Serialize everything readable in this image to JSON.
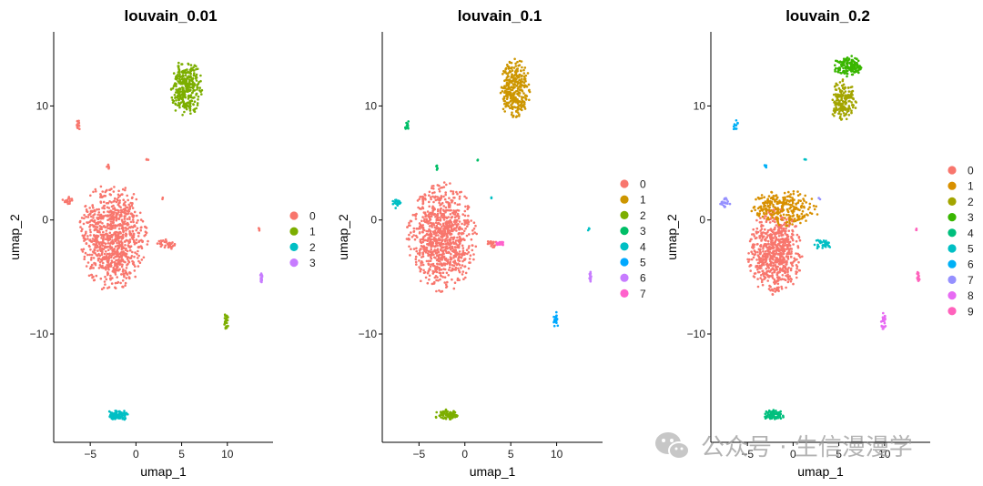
{
  "chart_data": [
    {
      "type": "scatter",
      "title": "louvain_0.01",
      "xlabel": "umap_1",
      "ylabel": "umap_2",
      "xlim": [
        -9,
        15
      ],
      "ylim": [
        -19.5,
        16.5
      ],
      "xticks": [
        -5,
        0,
        5,
        10
      ],
      "yticks": [
        -10,
        0,
        10
      ],
      "legend_position": "right",
      "legend": [
        "0",
        "1",
        "2",
        "3"
      ],
      "colors": [
        "#F8766D",
        "#7CAE00",
        "#00BFC4",
        "#C77CFF"
      ],
      "groups": [
        {
          "cx": -2.5,
          "cy": -1.5,
          "rx": 3.8,
          "ry": 4.8,
          "n": 900,
          "label": 0
        },
        {
          "cx": -7.5,
          "cy": 1.7,
          "rx": 0.6,
          "ry": 0.4,
          "n": 18,
          "label": 0
        },
        {
          "cx": -6.3,
          "cy": 8.3,
          "rx": 0.3,
          "ry": 0.5,
          "n": 12,
          "label": 0
        },
        {
          "cx": -3.0,
          "cy": 4.6,
          "rx": 0.2,
          "ry": 0.3,
          "n": 6,
          "label": 0
        },
        {
          "cx": 1.3,
          "cy": 5.3,
          "rx": 0.15,
          "ry": 0.15,
          "n": 3,
          "label": 0
        },
        {
          "cx": 2.9,
          "cy": 1.9,
          "rx": 0.1,
          "ry": 0.15,
          "n": 2,
          "label": 0
        },
        {
          "cx": 3.3,
          "cy": -2.1,
          "rx": 1.0,
          "ry": 0.5,
          "n": 35,
          "label": 0
        },
        {
          "cx": 13.5,
          "cy": -0.8,
          "rx": 0.1,
          "ry": 0.2,
          "n": 3,
          "label": 0
        },
        {
          "cx": 5.5,
          "cy": 11.5,
          "rx": 1.8,
          "ry": 2.6,
          "n": 320,
          "label": 1
        },
        {
          "cx": 9.9,
          "cy": -8.8,
          "rx": 0.3,
          "ry": 0.8,
          "n": 25,
          "label": 1
        },
        {
          "cx": -2.0,
          "cy": -17.1,
          "rx": 1.3,
          "ry": 0.5,
          "n": 80,
          "label": 2
        },
        {
          "cx": 13.7,
          "cy": -5.0,
          "rx": 0.15,
          "ry": 0.6,
          "n": 15,
          "label": 3
        }
      ]
    },
    {
      "type": "scatter",
      "title": "louvain_0.1",
      "xlabel": "umap_1",
      "ylabel": "umap_2",
      "xlim": [
        -9,
        15
      ],
      "ylim": [
        -19.5,
        16.5
      ],
      "xticks": [
        -5,
        0,
        5,
        10
      ],
      "yticks": [
        -10,
        0,
        10
      ],
      "legend_position": "right",
      "legend": [
        "0",
        "1",
        "2",
        "3",
        "4",
        "5",
        "6",
        "7"
      ],
      "colors": [
        "#F8766D",
        "#CD9600",
        "#7CAE00",
        "#00BE67",
        "#00BFC4",
        "#00A9FF",
        "#C77CFF",
        "#FF61CC"
      ],
      "groups": [
        {
          "cx": -2.5,
          "cy": -1.5,
          "rx": 3.8,
          "ry": 4.8,
          "n": 900,
          "label": 0
        },
        {
          "cx": 3.0,
          "cy": -2.1,
          "rx": 0.7,
          "ry": 0.4,
          "n": 20,
          "label": 0
        },
        {
          "cx": 5.5,
          "cy": 11.5,
          "rx": 1.8,
          "ry": 2.6,
          "n": 320,
          "label": 1
        },
        {
          "cx": -2.0,
          "cy": -17.1,
          "rx": 1.3,
          "ry": 0.5,
          "n": 80,
          "label": 2
        },
        {
          "cx": -6.3,
          "cy": 8.3,
          "rx": 0.3,
          "ry": 0.5,
          "n": 12,
          "label": 3
        },
        {
          "cx": -3.0,
          "cy": 4.6,
          "rx": 0.2,
          "ry": 0.3,
          "n": 6,
          "label": 3
        },
        {
          "cx": 1.3,
          "cy": 5.3,
          "rx": 0.15,
          "ry": 0.15,
          "n": 3,
          "label": 3
        },
        {
          "cx": -7.5,
          "cy": 1.5,
          "rx": 0.6,
          "ry": 0.5,
          "n": 20,
          "label": 4
        },
        {
          "cx": 2.9,
          "cy": 1.9,
          "rx": 0.1,
          "ry": 0.15,
          "n": 2,
          "label": 4
        },
        {
          "cx": 13.5,
          "cy": -0.8,
          "rx": 0.1,
          "ry": 0.2,
          "n": 3,
          "label": 4
        },
        {
          "cx": 9.9,
          "cy": -8.8,
          "rx": 0.3,
          "ry": 0.8,
          "n": 25,
          "label": 5
        },
        {
          "cx": 13.7,
          "cy": -5.0,
          "rx": 0.15,
          "ry": 0.6,
          "n": 15,
          "label": 6
        },
        {
          "cx": 3.9,
          "cy": -2.0,
          "rx": 0.5,
          "ry": 0.3,
          "n": 18,
          "label": 7
        }
      ]
    },
    {
      "type": "scatter",
      "title": "louvain_0.2",
      "xlabel": "umap_1",
      "ylabel": "umap_2",
      "xlim": [
        -9,
        15
      ],
      "ylim": [
        -19.5,
        16.5
      ],
      "xticks": [
        -5,
        0,
        5,
        10
      ],
      "yticks": [
        -10,
        0,
        10
      ],
      "legend_position": "right",
      "legend": [
        "0",
        "1",
        "2",
        "3",
        "4",
        "5",
        "6",
        "7",
        "8",
        "9"
      ],
      "colors": [
        "#F8766D",
        "#D89000",
        "#A3A500",
        "#39B600",
        "#00BF7D",
        "#00BFC4",
        "#00B0F6",
        "#9590FF",
        "#E76BF3",
        "#FF62BC"
      ],
      "groups": [
        {
          "cx": -2.0,
          "cy": -2.8,
          "rx": 3.0,
          "ry": 3.8,
          "n": 700,
          "label": 0
        },
        {
          "cx": -1.0,
          "cy": 1.0,
          "rx": 4.0,
          "ry": 1.6,
          "n": 260,
          "label": 1
        },
        {
          "cx": 5.5,
          "cy": 10.5,
          "rx": 1.6,
          "ry": 1.8,
          "n": 180,
          "label": 2
        },
        {
          "cx": 6.0,
          "cy": 13.5,
          "rx": 1.6,
          "ry": 1.0,
          "n": 140,
          "label": 3
        },
        {
          "cx": -2.0,
          "cy": -17.1,
          "rx": 1.3,
          "ry": 0.5,
          "n": 80,
          "label": 4
        },
        {
          "cx": 3.3,
          "cy": -2.1,
          "rx": 1.0,
          "ry": 0.5,
          "n": 35,
          "label": 5
        },
        {
          "cx": -6.3,
          "cy": 8.3,
          "rx": 0.3,
          "ry": 0.5,
          "n": 12,
          "label": 6
        },
        {
          "cx": -3.0,
          "cy": 4.6,
          "rx": 0.2,
          "ry": 0.3,
          "n": 6,
          "label": 6
        },
        {
          "cx": 1.3,
          "cy": 5.3,
          "rx": 0.15,
          "ry": 0.15,
          "n": 3,
          "label": 5
        },
        {
          "cx": -7.5,
          "cy": 1.5,
          "rx": 0.6,
          "ry": 0.5,
          "n": 20,
          "label": 7
        },
        {
          "cx": 2.9,
          "cy": 1.9,
          "rx": 0.1,
          "ry": 0.15,
          "n": 2,
          "label": 7
        },
        {
          "cx": 9.9,
          "cy": -8.8,
          "rx": 0.3,
          "ry": 0.8,
          "n": 25,
          "label": 8
        },
        {
          "cx": 13.5,
          "cy": -0.8,
          "rx": 0.1,
          "ry": 0.2,
          "n": 3,
          "label": 9
        },
        {
          "cx": 13.7,
          "cy": -5.0,
          "rx": 0.15,
          "ry": 0.6,
          "n": 15,
          "label": 9
        }
      ]
    }
  ],
  "watermark": {
    "text": "公众号 · 生信漫漫学",
    "icon": "wechat-icon"
  }
}
